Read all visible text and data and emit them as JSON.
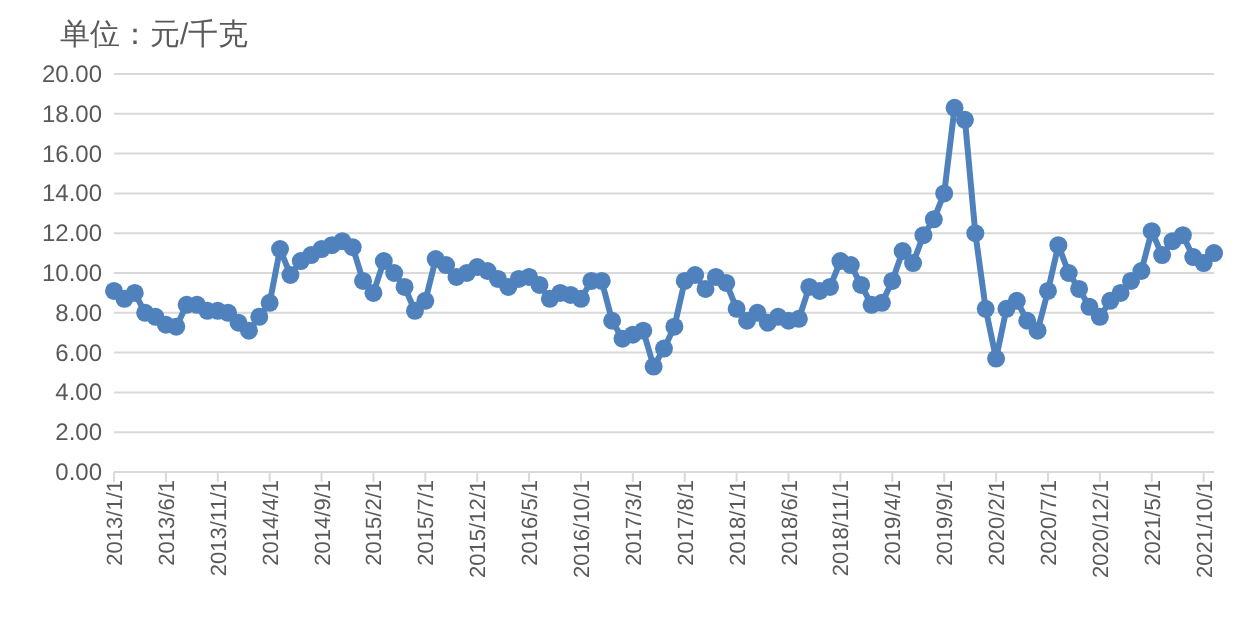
{
  "chart_data": {
    "type": "line",
    "title": "单位：元/千克",
    "categories": [
      "2013/1/1",
      null,
      null,
      null,
      null,
      "2013/6/1",
      null,
      null,
      null,
      null,
      "2013/11/1",
      null,
      null,
      null,
      null,
      "2014/4/1",
      null,
      null,
      null,
      null,
      "2014/9/1",
      null,
      null,
      null,
      null,
      "2015/2/1",
      null,
      null,
      null,
      null,
      "2015/7/1",
      null,
      null,
      null,
      null,
      "2015/12/1",
      null,
      null,
      null,
      null,
      "2016/5/1",
      null,
      null,
      null,
      null,
      "2016/10/1",
      null,
      null,
      null,
      null,
      "2017/3/1",
      null,
      null,
      null,
      null,
      "2017/8/1",
      null,
      null,
      null,
      null,
      "2018/1/1",
      null,
      null,
      null,
      null,
      "2018/6/1",
      null,
      null,
      null,
      null,
      "2018/11/1",
      null,
      null,
      null,
      null,
      "2019/4/1",
      null,
      null,
      null,
      null,
      "2019/9/1",
      null,
      null,
      null,
      null,
      "2020/2/1",
      null,
      null,
      null,
      null,
      "2020/7/1",
      null,
      null,
      null,
      null,
      "2020/12/1",
      null,
      null,
      null,
      null,
      "2021/5/1",
      null,
      null,
      null,
      null,
      "2021/10/1",
      null
    ],
    "series": [
      {
        "color": "#4f81bd",
        "values": [
          9.1,
          8.7,
          9.0,
          8.0,
          7.8,
          7.4,
          7.3,
          8.4,
          8.4,
          8.1,
          8.1,
          8.0,
          7.5,
          7.1,
          7.8,
          8.5,
          11.2,
          9.9,
          10.6,
          10.9,
          11.2,
          11.4,
          11.6,
          11.3,
          9.6,
          9.0,
          10.6,
          10.0,
          9.3,
          8.1,
          8.6,
          10.7,
          10.4,
          9.8,
          10.0,
          10.3,
          10.1,
          9.7,
          9.3,
          9.7,
          9.8,
          9.4,
          8.7,
          9.0,
          8.9,
          8.7,
          9.6,
          9.6,
          7.6,
          6.7,
          6.9,
          7.1,
          5.3,
          6.2,
          7.3,
          9.6,
          9.9,
          9.2,
          9.8,
          9.5,
          8.2,
          7.6,
          8.0,
          7.5,
          7.8,
          7.6,
          7.7,
          9.3,
          9.1,
          9.3,
          10.6,
          10.4,
          9.4,
          8.4,
          8.5,
          9.6,
          11.1,
          10.5,
          11.9,
          12.7,
          14.0,
          18.3,
          17.7,
          12.0,
          8.2,
          5.7,
          8.2,
          8.6,
          7.6,
          7.1,
          9.1,
          11.4,
          10.0,
          9.2,
          8.3,
          7.8,
          8.6,
          9.0,
          9.6,
          10.1,
          12.1,
          10.9,
          11.6,
          11.9,
          10.8,
          10.5,
          11.0
        ]
      }
    ],
    "ylim": [
      0,
      20
    ],
    "yticks": [
      {
        "value": 0,
        "label": "0.00"
      },
      {
        "value": 2,
        "label": "2.00"
      },
      {
        "value": 4,
        "label": "4.00"
      },
      {
        "value": 6,
        "label": "6.00"
      },
      {
        "value": 8,
        "label": "8.00"
      },
      {
        "value": 10,
        "label": "10.00"
      },
      {
        "value": 12,
        "label": "12.00"
      },
      {
        "value": 14,
        "label": "14.00"
      },
      {
        "value": 16,
        "label": "16.00"
      },
      {
        "value": 18,
        "label": "18.00"
      },
      {
        "value": 20,
        "label": "20.00"
      }
    ],
    "grid": "y",
    "marker": "circle",
    "line_style": "solid"
  }
}
